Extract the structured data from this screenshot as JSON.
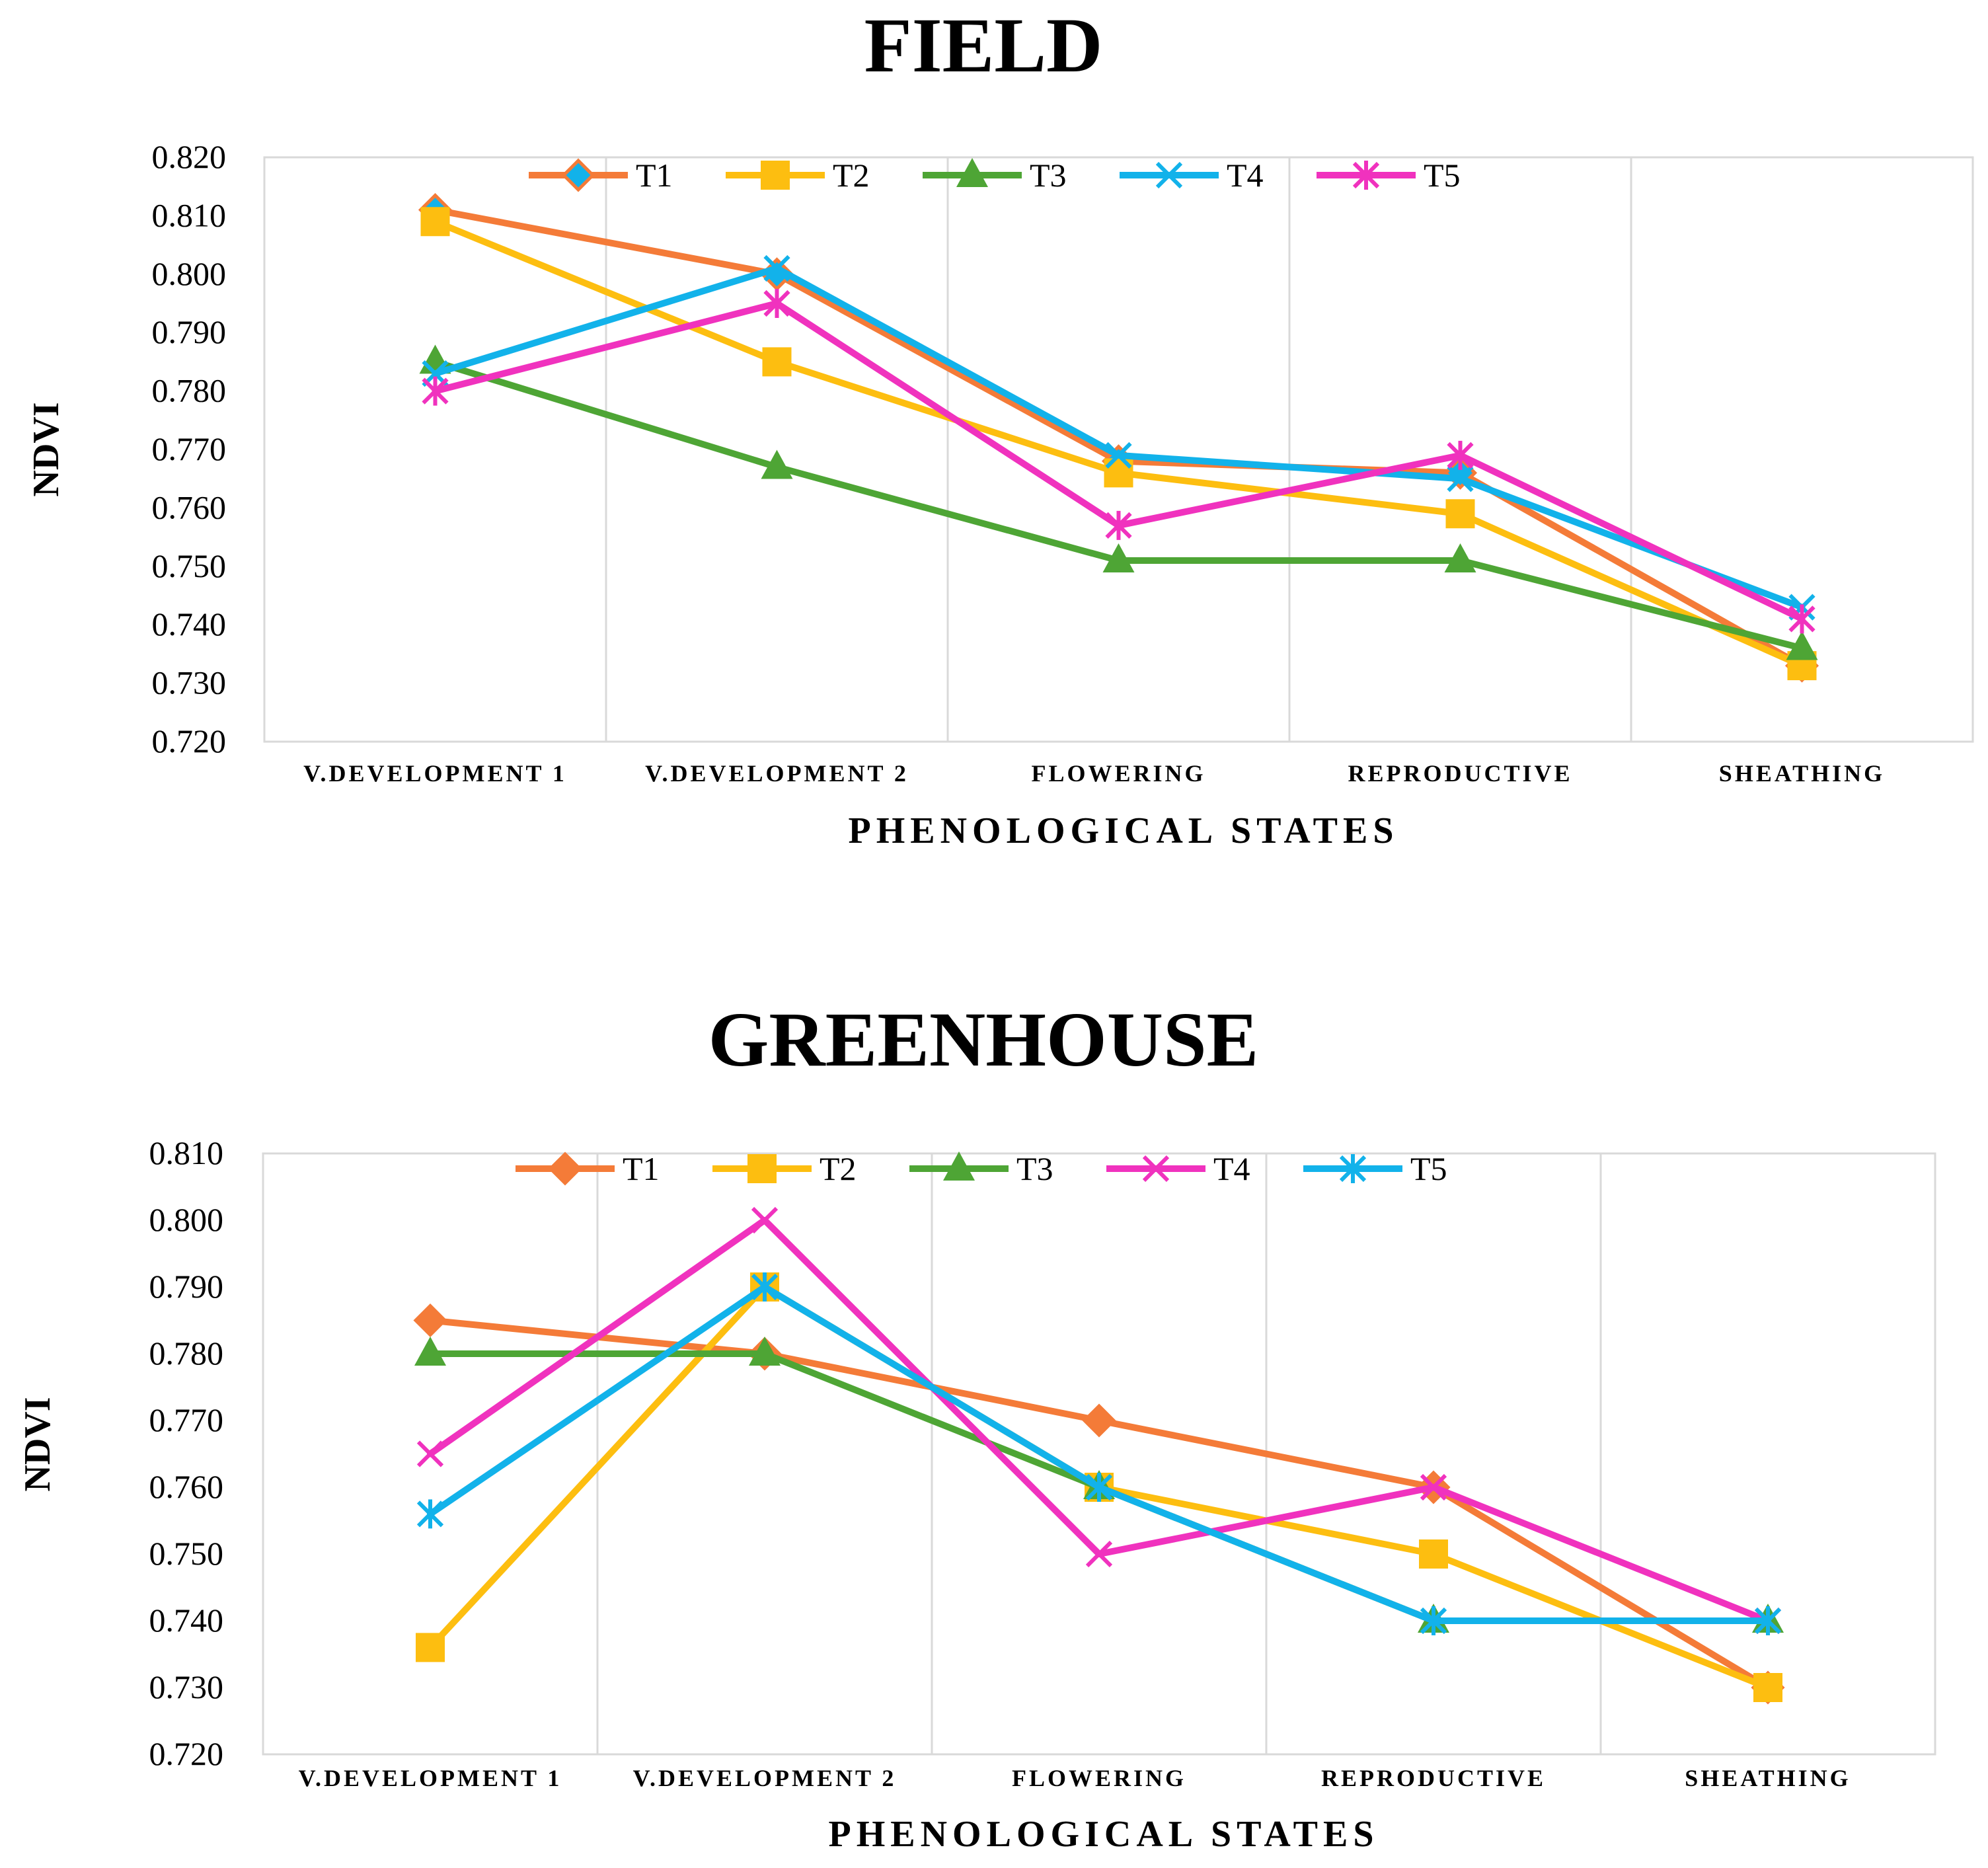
{
  "chart_data": [
    {
      "type": "line",
      "title": "FIELD",
      "xlabel": "PHENOLOGICAL STATES",
      "ylabel": "NDVI",
      "ylim": [
        0.72,
        0.82
      ],
      "yticks": [
        "0.720",
        "0.730",
        "0.740",
        "0.750",
        "0.760",
        "0.770",
        "0.780",
        "0.790",
        "0.800",
        "0.810",
        "0.820"
      ],
      "categories": [
        "V.DEVELOPMENT 1",
        "V.DEVELOPMENT 2",
        "FLOWERING",
        "REPRODUCTIVE",
        "SHEATHING"
      ],
      "legend_position": "top-center",
      "grid": "vertical category separators",
      "series": [
        {
          "name": "T1",
          "color": "#F47B38",
          "marker": "diamond-hollow",
          "values": [
            0.811,
            0.8,
            0.768,
            0.766,
            0.733
          ]
        },
        {
          "name": "T2",
          "color": "#FDBE10",
          "marker": "square",
          "values": [
            0.809,
            0.785,
            0.766,
            0.759,
            0.733
          ]
        },
        {
          "name": "T3",
          "color": "#4EA535",
          "marker": "triangle",
          "values": [
            0.785,
            0.767,
            0.751,
            0.751,
            0.736
          ]
        },
        {
          "name": "T4",
          "color": "#12B2EA",
          "marker": "x",
          "values": [
            0.783,
            0.801,
            0.769,
            0.765,
            0.743
          ]
        },
        {
          "name": "T5",
          "color": "#F032BE",
          "marker": "asterisk",
          "values": [
            0.78,
            0.795,
            0.757,
            0.769,
            0.741
          ]
        }
      ]
    },
    {
      "type": "line",
      "title": "GREENHOUSE",
      "xlabel": "PHENOLOGICAL STATES",
      "ylabel": "NDVI",
      "ylim": [
        0.72,
        0.81
      ],
      "yticks": [
        "0.720",
        "0.730",
        "0.740",
        "0.750",
        "0.760",
        "0.770",
        "0.780",
        "0.790",
        "0.800",
        "0.810"
      ],
      "categories": [
        "V.DEVELOPMENT 1",
        "V.DEVELOPMENT 2",
        "FLOWERING",
        "REPRODUCTIVE",
        "SHEATHING"
      ],
      "legend_position": "top-center",
      "grid": "vertical category separators",
      "series": [
        {
          "name": "T1",
          "color": "#F47B38",
          "marker": "diamond",
          "values": [
            0.785,
            0.78,
            0.77,
            0.76,
            0.73
          ]
        },
        {
          "name": "T2",
          "color": "#FDBE10",
          "marker": "square",
          "values": [
            0.736,
            0.79,
            0.76,
            0.75,
            0.73
          ]
        },
        {
          "name": "T3",
          "color": "#4EA535",
          "marker": "triangle",
          "values": [
            0.78,
            0.78,
            0.76,
            0.74,
            0.74
          ]
        },
        {
          "name": "T4",
          "color": "#F032BE",
          "marker": "x",
          "values": [
            0.765,
            0.8,
            0.75,
            0.76,
            0.74
          ]
        },
        {
          "name": "T5",
          "color": "#12B2EA",
          "marker": "asterisk",
          "values": [
            0.756,
            0.79,
            0.76,
            0.74,
            0.74
          ]
        }
      ]
    }
  ]
}
